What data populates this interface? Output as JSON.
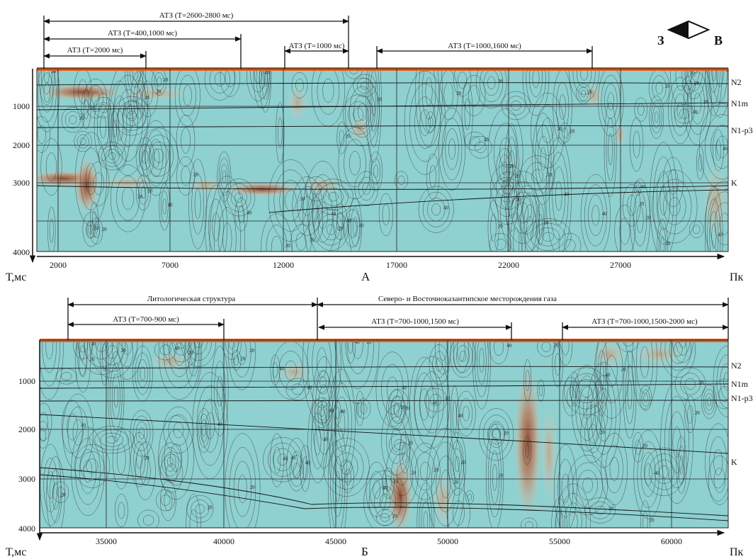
{
  "compass": {
    "west": "З",
    "east": "В"
  },
  "colors": {
    "background": "#8fd0d0",
    "surface": "#e5601f",
    "anomaly_high": "#b87450",
    "anomaly_mid": "#d9b8a0",
    "contour": "#2a2a2a"
  },
  "panels": [
    {
      "id": "A",
      "label": "А",
      "y_axis_label": "Т,мс",
      "x_axis_label": "Пк",
      "y_ticks": [
        "1000",
        "2000",
        "3000",
        "4000"
      ],
      "x_ticks": [
        "2000",
        "7000",
        "12000",
        "17000",
        "22000",
        "27000"
      ],
      "horizons": [
        "N2",
        "N1m",
        "N1-p3",
        "K"
      ],
      "annotations": [
        {
          "text": "АТЗ (Т=2600-2800 мс)"
        },
        {
          "text": "АТЗ (Т=400,1000 мс)"
        },
        {
          "text": "АТЗ (Т=2000 мс)"
        },
        {
          "text": "АТЗ (Т=1000 мс)"
        },
        {
          "text": "АТЗ (Т=1000,1600 мс)"
        }
      ]
    },
    {
      "id": "B",
      "label": "Б",
      "y_axis_label": "Т,мс",
      "x_axis_label": "Пк",
      "y_ticks": [
        "1000",
        "2000",
        "3000",
        "4000"
      ],
      "x_ticks": [
        "35000",
        "40000",
        "45000",
        "50000",
        "55000",
        "60000"
      ],
      "horizons": [
        "N2",
        "N1m",
        "N1-p3",
        "K"
      ],
      "annotations": [
        {
          "text": "Литологическая структура"
        },
        {
          "text": "Северо- и Восточноказантипское месторождения газа"
        },
        {
          "text": "АТЗ (Т=700-900 мс)"
        },
        {
          "text": "АТЗ (Т=700-1000,1500 мс)"
        },
        {
          "text": "АТЗ (Т=700-1000,1500-2000 мс)"
        }
      ]
    }
  ],
  "contour_labels": [
    "20",
    "40",
    "60",
    "80",
    "140"
  ]
}
